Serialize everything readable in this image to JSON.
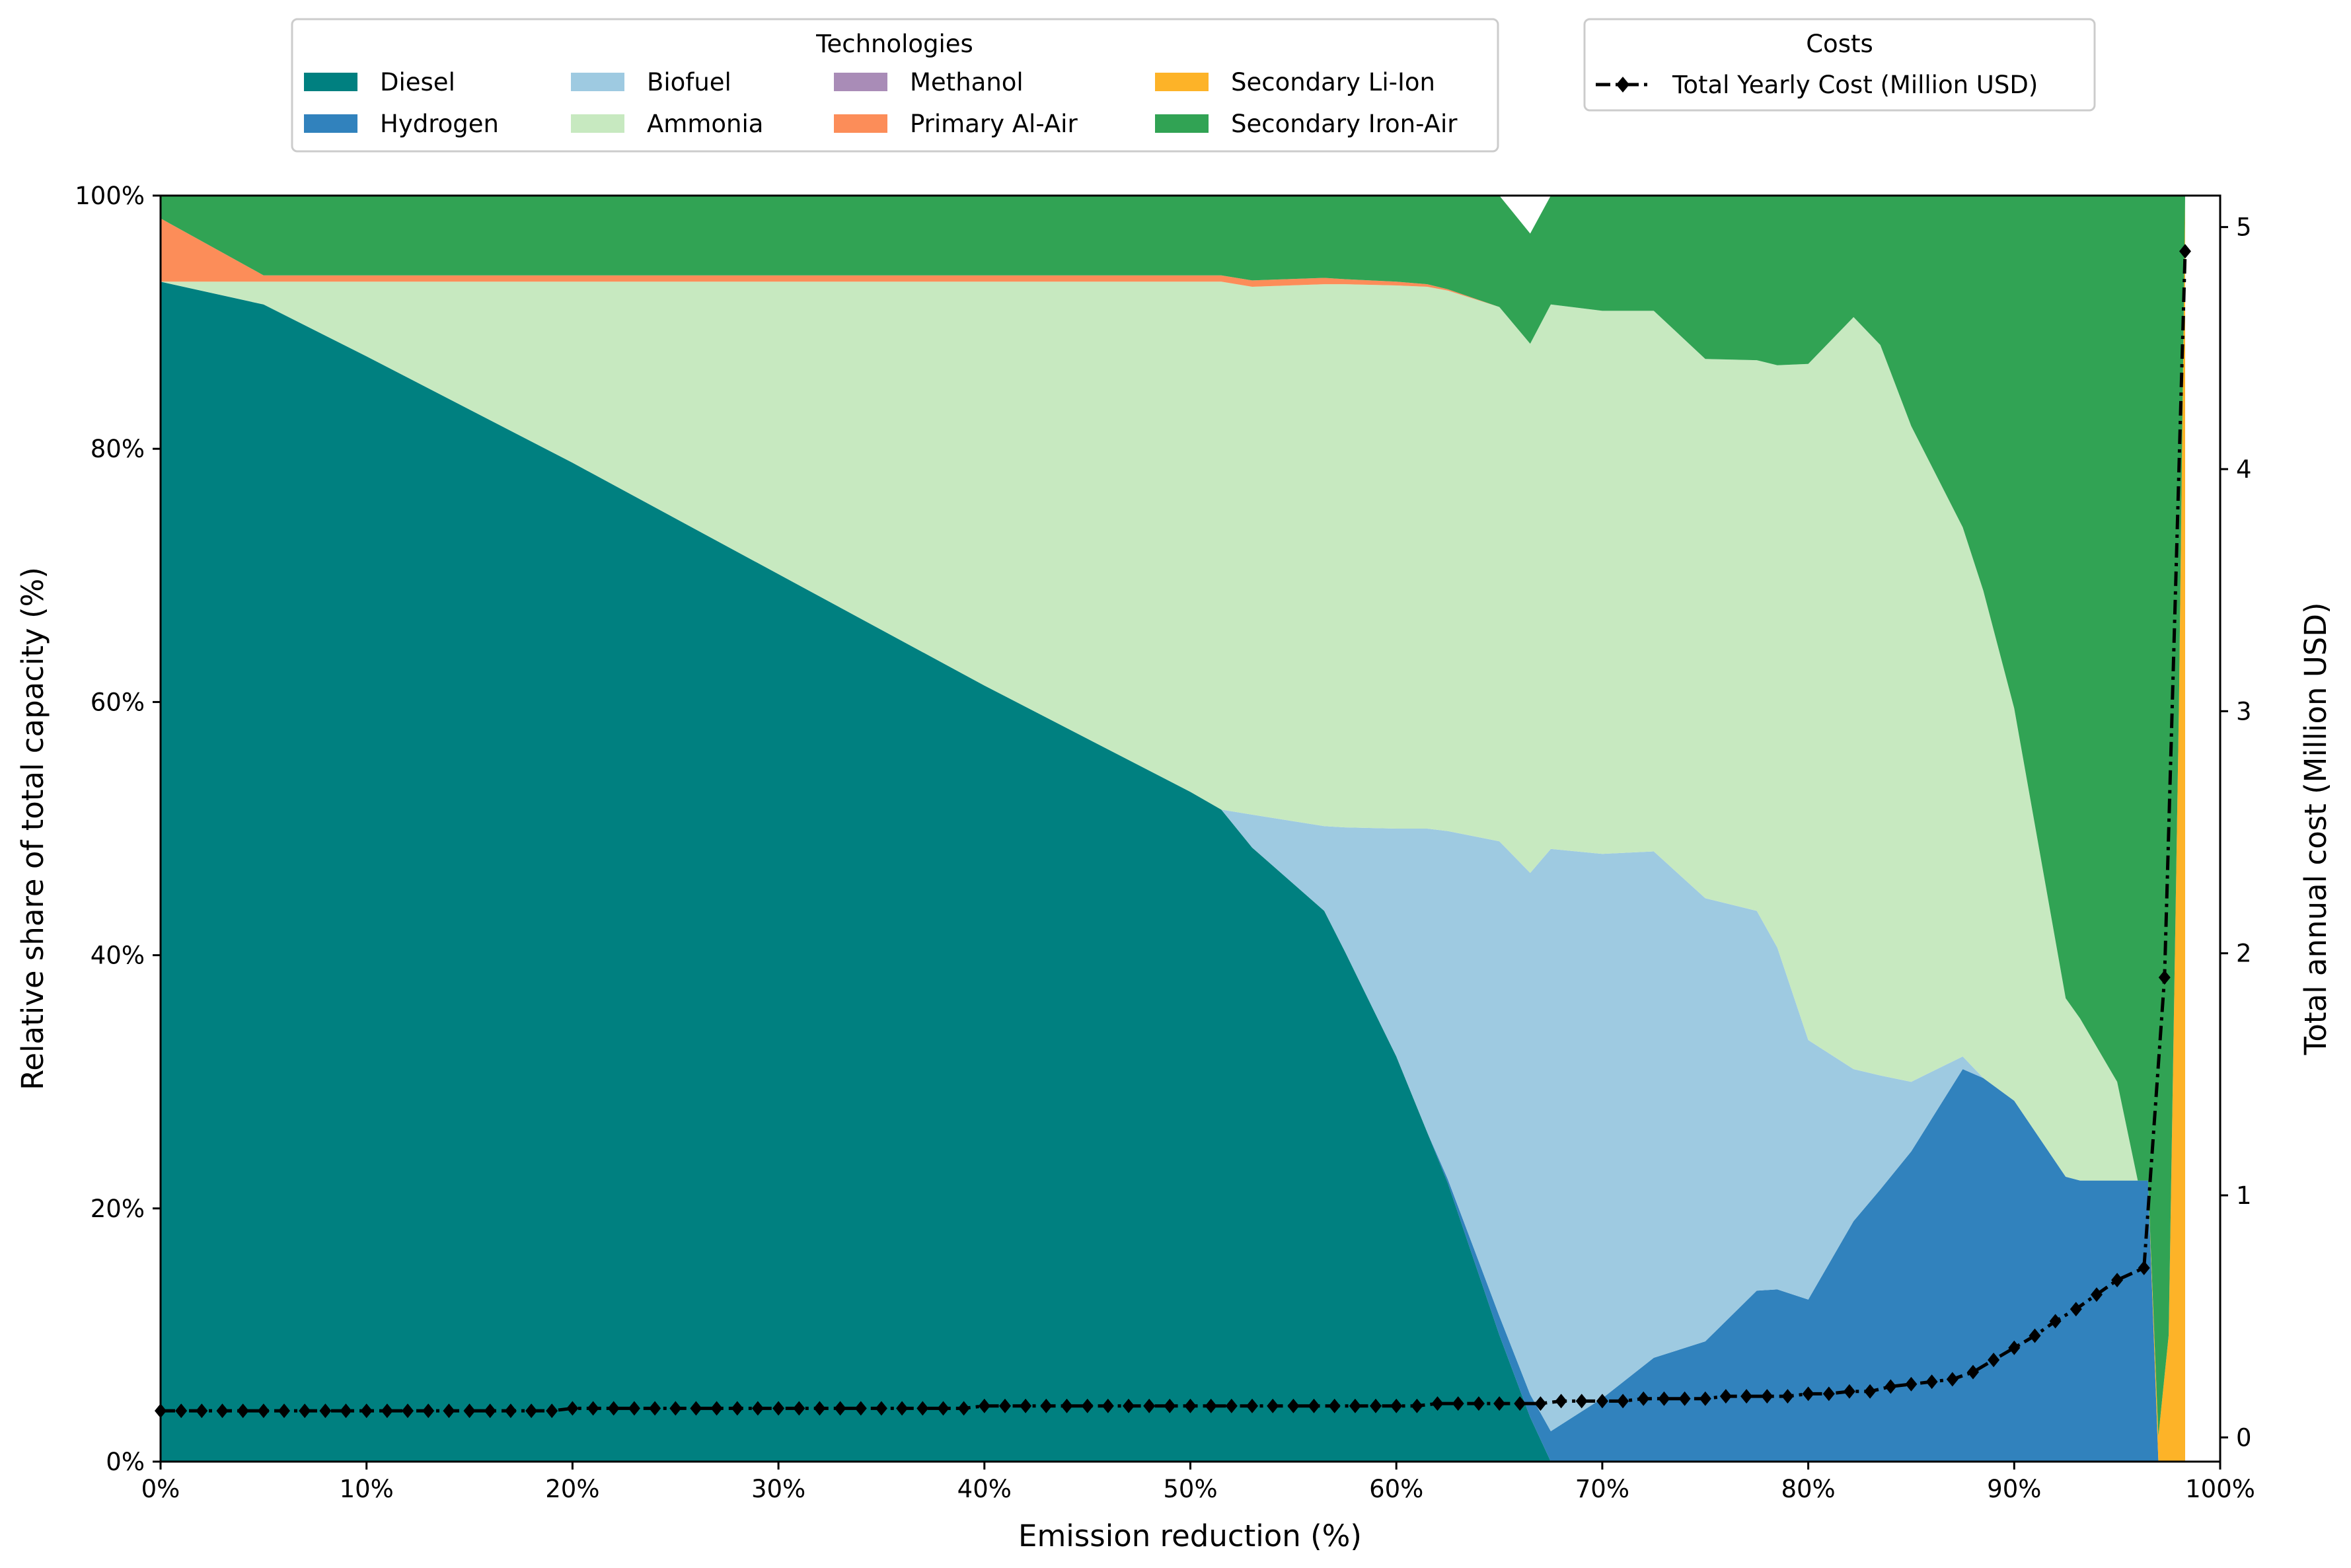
{
  "chart_data": {
    "type": "area",
    "subtype": "stacked-area-100-percent-with-secondary-line",
    "xlabel": "Emission reduction (%)",
    "ylabel": "Relative share of total capacity (%)",
    "y2label": "Total annual cost (Million USD)",
    "xlim": [
      0,
      100
    ],
    "ylim": [
      0,
      100
    ],
    "y2lim": [
      -0.1,
      5.13
    ],
    "xticks": [
      0,
      10,
      20,
      30,
      40,
      50,
      60,
      70,
      80,
      90,
      100
    ],
    "xtick_labels": [
      "0%",
      "10%",
      "20%",
      "30%",
      "40%",
      "50%",
      "60%",
      "70%",
      "80%",
      "90%",
      "100%"
    ],
    "yticks": [
      0,
      20,
      40,
      60,
      80,
      100
    ],
    "ytick_labels": [
      "0%",
      "20%",
      "40%",
      "60%",
      "80%",
      "100%"
    ],
    "y2ticks": [
      0,
      1,
      2,
      3,
      4,
      5
    ],
    "y2tick_labels": [
      "0",
      "1",
      "2",
      "3",
      "4",
      "5"
    ],
    "grid": false,
    "tech_legend": {
      "title": "Technologies",
      "placement": "top-center-left",
      "columns": 4
    },
    "cost_legend": {
      "title": "Costs",
      "placement": "top-right"
    },
    "x": [
      0,
      5,
      10,
      20,
      30,
      40,
      50,
      51.5,
      53,
      56.5,
      57.5,
      60,
      61.5,
      62.5,
      65,
      66.5,
      67.5,
      70,
      72.5,
      75,
      77.5,
      78.5,
      80,
      82.2,
      83.5,
      85,
      87.5,
      88.5,
      90,
      92.5,
      93.2,
      95,
      96,
      96.5,
      97,
      97.5,
      98,
      98.3
    ],
    "series": [
      {
        "name": "Diesel",
        "color": "#008080",
        "values": [
          93.2,
          91.4,
          87.3,
          78.9,
          70.1,
          61.3,
          52.9,
          51.5,
          48.5,
          43.5,
          40.3,
          32,
          26,
          22,
          10,
          3.5,
          0,
          0,
          0,
          0,
          0,
          0,
          0,
          0,
          0,
          0,
          0,
          0,
          0,
          0,
          0,
          0,
          0,
          0,
          0,
          0,
          0,
          0
        ]
      },
      {
        "name": "Hydrogen",
        "color": "#3182bd",
        "values": [
          0,
          0,
          0,
          0,
          0,
          0,
          0,
          0,
          0,
          0,
          0,
          0,
          0,
          0.3,
          1.5,
          1.8,
          2.4,
          5,
          8.2,
          9.5,
          13.5,
          13.6,
          12.8,
          19,
          21.5,
          24.5,
          31,
          30.3,
          28.5,
          22.5,
          22.2,
          22.2,
          22.2,
          22.2,
          0,
          0,
          0,
          0
        ]
      },
      {
        "name": "Biofuel",
        "color": "#9ecae1",
        "values": [
          0,
          0,
          0,
          0,
          0,
          0,
          0,
          0,
          2.6,
          6.7,
          9.8,
          18,
          24,
          27.5,
          37.5,
          41.2,
          46,
          43,
          40,
          35,
          30,
          27,
          20.5,
          12,
          9,
          5.5,
          1,
          0,
          0,
          0,
          0,
          0,
          0,
          0,
          0,
          0,
          0,
          0
        ]
      },
      {
        "name": "Ammonia",
        "color": "#c7e9c0",
        "values": [
          0,
          1.8,
          5.9,
          14.3,
          23.1,
          31.9,
          40.3,
          41.7,
          41.7,
          42.8,
          42.9,
          42.9,
          42.8,
          42.7,
          42.2,
          41.8,
          43,
          42.9,
          42.7,
          42.6,
          43.5,
          46,
          53.4,
          59.4,
          57.7,
          51.8,
          41.8,
          38.5,
          31,
          14.1,
          12.8,
          7.8,
          0,
          0,
          0,
          0,
          0,
          0
        ]
      },
      {
        "name": "Methanol",
        "color": "#a98cb7",
        "values": [
          0,
          0,
          0,
          0,
          0,
          0,
          0,
          0,
          0,
          0,
          0,
          0,
          0,
          0,
          0,
          0,
          0,
          0,
          0,
          0,
          0,
          0,
          0,
          0,
          0,
          0,
          0,
          0,
          0,
          0,
          0,
          0,
          0,
          0,
          0,
          0,
          0,
          0
        ]
      },
      {
        "name": "Primary Al-Air",
        "color": "#fc8d59",
        "values": [
          5,
          0.5,
          0.5,
          0.5,
          0.5,
          0.5,
          0.5,
          0.5,
          0.5,
          0.5,
          0.4,
          0.3,
          0.2,
          0.1,
          0,
          0,
          0,
          0,
          0,
          0,
          0,
          0,
          0,
          0,
          0,
          0,
          0,
          0,
          0,
          0,
          0,
          0,
          0,
          0,
          0,
          0,
          0,
          0
        ]
      },
      {
        "name": "Secondary Li-Ion",
        "color": "#fdb328",
        "values": [
          0,
          0,
          0,
          0,
          0,
          0,
          0,
          0,
          0,
          0,
          0,
          0,
          0,
          0,
          0,
          0,
          0,
          0,
          0,
          0,
          0,
          0,
          0,
          0,
          0,
          0,
          0,
          0,
          0,
          0,
          0,
          0,
          0,
          0,
          2,
          10,
          60,
          100
        ]
      },
      {
        "name": "Secondary Iron-Air",
        "color": "#31a354",
        "values": [
          1.8,
          6.3,
          6.3,
          6.3,
          6.3,
          6.3,
          6.3,
          6.3,
          6.7,
          6.5,
          6.6,
          6.8,
          7,
          7.4,
          8.8,
          8.7,
          8.6,
          9.1,
          9.1,
          12.9,
          13,
          13.4,
          13.3,
          9.6,
          11.8,
          18.2,
          26.2,
          31.2,
          40.5,
          63.4,
          65,
          70,
          77.8,
          77.8,
          98,
          90,
          40,
          0
        ]
      }
    ],
    "cost_line": {
      "name": "Total Yearly Cost (Million USD)",
      "color": "#000000",
      "marker": "diamond",
      "style": "dash-dot",
      "x": [
        0,
        1,
        2,
        3,
        4,
        5,
        6,
        7,
        8,
        9,
        10,
        11,
        12,
        13,
        14,
        15,
        16,
        17,
        18,
        19,
        20,
        21,
        22,
        23,
        24,
        25,
        26,
        27,
        28,
        29,
        30,
        31,
        32,
        33,
        34,
        35,
        36,
        37,
        38,
        39,
        40,
        41,
        42,
        43,
        44,
        45,
        46,
        47,
        48,
        49,
        50,
        51,
        52,
        53,
        54,
        55,
        56,
        57,
        58,
        59,
        60,
        61,
        62,
        63,
        64,
        65,
        66,
        67,
        68,
        69,
        70,
        71,
        72,
        73,
        74,
        75,
        76,
        77,
        78,
        79,
        80,
        81,
        82,
        83,
        84,
        85,
        86,
        87,
        88,
        89,
        90,
        91,
        92,
        93,
        94,
        95,
        96.3,
        97.3,
        98.3
      ],
      "values": [
        0.11,
        0.11,
        0.11,
        0.11,
        0.11,
        0.11,
        0.11,
        0.11,
        0.11,
        0.11,
        0.11,
        0.11,
        0.11,
        0.11,
        0.11,
        0.11,
        0.11,
        0.11,
        0.11,
        0.11,
        0.12,
        0.12,
        0.12,
        0.12,
        0.12,
        0.12,
        0.12,
        0.12,
        0.12,
        0.12,
        0.12,
        0.12,
        0.12,
        0.12,
        0.12,
        0.12,
        0.12,
        0.12,
        0.12,
        0.12,
        0.13,
        0.13,
        0.13,
        0.13,
        0.13,
        0.13,
        0.13,
        0.13,
        0.13,
        0.13,
        0.13,
        0.13,
        0.13,
        0.13,
        0.13,
        0.13,
        0.13,
        0.13,
        0.13,
        0.13,
        0.13,
        0.13,
        0.14,
        0.14,
        0.14,
        0.14,
        0.14,
        0.14,
        0.15,
        0.15,
        0.15,
        0.15,
        0.16,
        0.16,
        0.16,
        0.16,
        0.17,
        0.17,
        0.17,
        0.17,
        0.18,
        0.18,
        0.19,
        0.19,
        0.21,
        0.22,
        0.23,
        0.24,
        0.27,
        0.32,
        0.37,
        0.42,
        0.48,
        0.53,
        0.59,
        0.65,
        0.7,
        1.9,
        4.9
      ]
    }
  }
}
